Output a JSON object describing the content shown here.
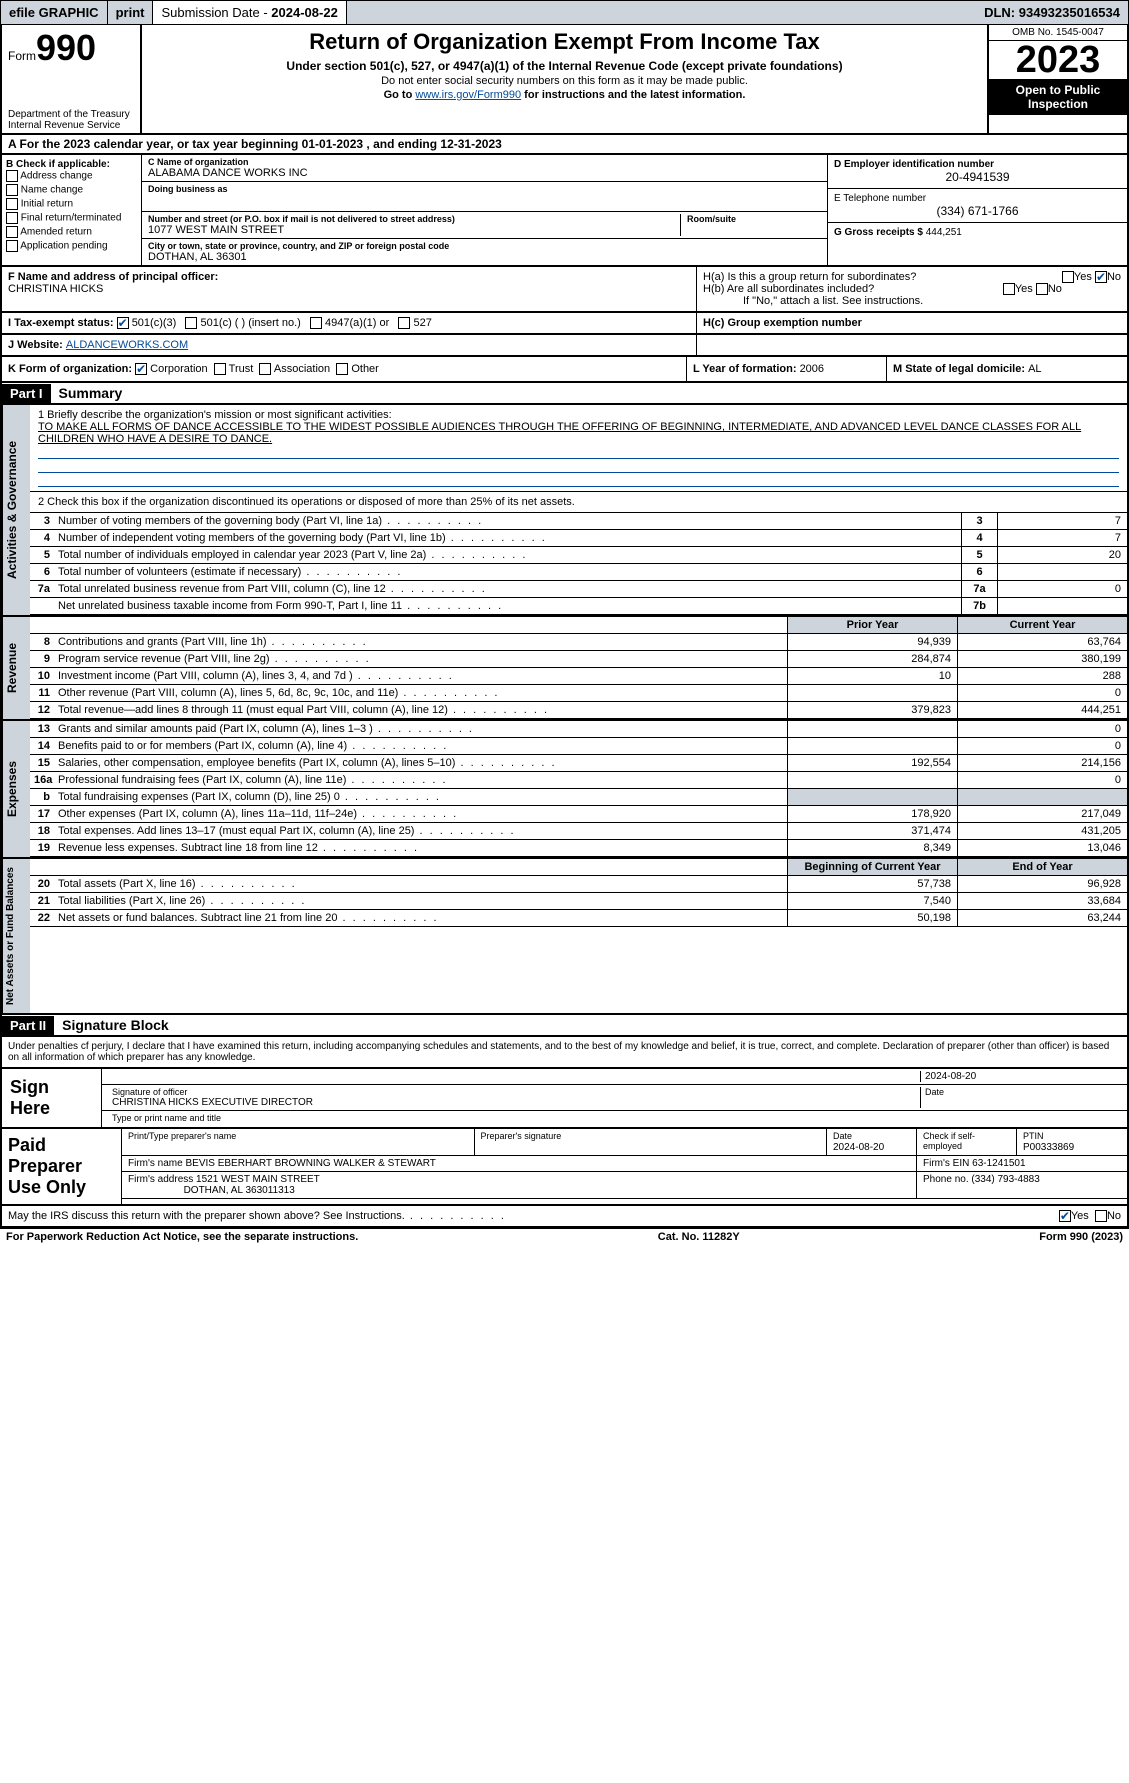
{
  "topbar": {
    "efile": "efile GRAPHIC",
    "print": "print",
    "submission_label": "Submission Date - ",
    "submission_date": "2024-08-22",
    "dln_label": "DLN: ",
    "dln": "93493235016534"
  },
  "header": {
    "form_prefix": "Form",
    "form_number": "990",
    "dept": "Department of the Treasury\nInternal Revenue Service",
    "title": "Return of Organization Exempt From Income Tax",
    "subtitle": "Under section 501(c), 527, or 4947(a)(1) of the Internal Revenue Code (except private foundations)",
    "note1": "Do not enter social security numbers on this form as it may be made public.",
    "note2_prefix": "Go to ",
    "note2_link": "www.irs.gov/Form990",
    "note2_suffix": " for instructions and the latest information.",
    "omb": "OMB No. 1545-0047",
    "year": "2023",
    "open": "Open to Public Inspection"
  },
  "row_a": {
    "text_prefix": "A For the 2023 calendar year, or tax year beginning ",
    "begin": "01-01-2023",
    "mid": " , and ending ",
    "end": "12-31-2023"
  },
  "box_b": {
    "label": "B Check if applicable:",
    "opts": [
      "Address change",
      "Name change",
      "Initial return",
      "Final return/terminated",
      "Amended return",
      "Application pending"
    ]
  },
  "box_c": {
    "name_label": "C Name of organization",
    "name": "ALABAMA DANCE WORKS INC",
    "dba_label": "Doing business as",
    "dba": "",
    "street_label": "Number and street (or P.O. box if mail is not delivered to street address)",
    "street": "1077 WEST MAIN STREET",
    "suite_label": "Room/suite",
    "suite": "",
    "city_label": "City or town, state or province, country, and ZIP or foreign postal code",
    "city": "DOTHAN, AL  36301"
  },
  "box_d": {
    "label": "D Employer identification number",
    "value": "20-4941539"
  },
  "box_e": {
    "label": "E Telephone number",
    "value": "(334) 671-1766"
  },
  "box_g": {
    "label": "G Gross receipts $ ",
    "value": "444,251"
  },
  "box_f": {
    "label": "F  Name and address of principal officer:",
    "name": "CHRISTINA HICKS"
  },
  "box_h": {
    "a": "H(a)  Is this a group return for subordinates?",
    "a_yes": "Yes",
    "a_no": "No",
    "a_checked": "No",
    "b": "H(b)  Are all subordinates included?",
    "b_yes": "Yes",
    "b_no": "No",
    "b_note": "If \"No,\" attach a list. See instructions.",
    "c": "H(c)  Group exemption number "
  },
  "box_i": {
    "label": "I    Tax-exempt status:",
    "opts": [
      "501(c)(3)",
      "501(c) (  ) (insert no.)",
      "4947(a)(1) or",
      "527"
    ],
    "checked": 0
  },
  "box_j": {
    "label": "J   Website: ",
    "value": "ALDANCEWORKS.COM"
  },
  "box_k": {
    "label": "K Form of organization:",
    "opts": [
      "Corporation",
      "Trust",
      "Association",
      "Other"
    ],
    "checked": 0
  },
  "box_l": {
    "label": "L Year of formation: ",
    "value": "2006"
  },
  "box_m": {
    "label": "M State of legal domicile: ",
    "value": "AL"
  },
  "parts": {
    "p1": "Part I",
    "p1_title": "Summary",
    "p2": "Part II",
    "p2_title": "Signature Block"
  },
  "mission": {
    "label": "1   Briefly describe the organization's mission or most significant activities:",
    "text": "TO MAKE ALL FORMS OF DANCE ACCESSIBLE TO THE WIDEST POSSIBLE AUDIENCES THROUGH THE OFFERING OF BEGINNING, INTERMEDIATE, AND ADVANCED LEVEL DANCE CLASSES FOR ALL CHILDREN WHO HAVE A DESIRE TO DANCE."
  },
  "line2": "2   Check this box      if the organization discontinued its operations or disposed of more than 25% of its net assets.",
  "gov_lines": [
    {
      "n": "3",
      "d": "Number of voting members of the governing body (Part VI, line 1a)",
      "k": "3",
      "v": "7"
    },
    {
      "n": "4",
      "d": "Number of independent voting members of the governing body (Part VI, line 1b)",
      "k": "4",
      "v": "7"
    },
    {
      "n": "5",
      "d": "Total number of individuals employed in calendar year 2023 (Part V, line 2a)",
      "k": "5",
      "v": "20"
    },
    {
      "n": "6",
      "d": "Total number of volunteers (estimate if necessary)",
      "k": "6",
      "v": ""
    },
    {
      "n": "7a",
      "d": "Total unrelated business revenue from Part VIII, column (C), line 12",
      "k": "7a",
      "v": "0"
    },
    {
      "n": " ",
      "d": "Net unrelated business taxable income from Form 990-T, Part I, line 11",
      "k": "7b",
      "v": ""
    }
  ],
  "colheaders": {
    "prior": "Prior Year",
    "current": "Current Year",
    "begin": "Beginning of Current Year",
    "end": "End of Year"
  },
  "revenue": [
    {
      "n": "8",
      "d": "Contributions and grants (Part VIII, line 1h)",
      "v1": "94,939",
      "v2": "63,764"
    },
    {
      "n": "9",
      "d": "Program service revenue (Part VIII, line 2g)",
      "v1": "284,874",
      "v2": "380,199"
    },
    {
      "n": "10",
      "d": "Investment income (Part VIII, column (A), lines 3, 4, and 7d )",
      "v1": "10",
      "v2": "288"
    },
    {
      "n": "11",
      "d": "Other revenue (Part VIII, column (A), lines 5, 6d, 8c, 9c, 10c, and 11e)",
      "v1": "",
      "v2": "0"
    },
    {
      "n": "12",
      "d": "Total revenue—add lines 8 through 11 (must equal Part VIII, column (A), line 12)",
      "v1": "379,823",
      "v2": "444,251"
    }
  ],
  "expenses": [
    {
      "n": "13",
      "d": "Grants and similar amounts paid (Part IX, column (A), lines 1–3 )",
      "v1": "",
      "v2": "0"
    },
    {
      "n": "14",
      "d": "Benefits paid to or for members (Part IX, column (A), line 4)",
      "v1": "",
      "v2": "0"
    },
    {
      "n": "15",
      "d": "Salaries, other compensation, employee benefits (Part IX, column (A), lines 5–10)",
      "v1": "192,554",
      "v2": "214,156"
    },
    {
      "n": "16a",
      "d": "Professional fundraising fees (Part IX, column (A), line 11e)",
      "v1": "",
      "v2": "0"
    },
    {
      "n": "b",
      "d": "Total fundraising expenses (Part IX, column (D), line 25) 0",
      "v1": "grey",
      "v2": "grey"
    },
    {
      "n": "17",
      "d": "Other expenses (Part IX, column (A), lines 11a–11d, 11f–24e)",
      "v1": "178,920",
      "v2": "217,049"
    },
    {
      "n": "18",
      "d": "Total expenses. Add lines 13–17 (must equal Part IX, column (A), line 25)",
      "v1": "371,474",
      "v2": "431,205"
    },
    {
      "n": "19",
      "d": "Revenue less expenses. Subtract line 18 from line 12",
      "v1": "8,349",
      "v2": "13,046"
    }
  ],
  "netassets": [
    {
      "n": "20",
      "d": "Total assets (Part X, line 16)",
      "v1": "57,738",
      "v2": "96,928"
    },
    {
      "n": "21",
      "d": "Total liabilities (Part X, line 26)",
      "v1": "7,540",
      "v2": "33,684"
    },
    {
      "n": "22",
      "d": "Net assets or fund balances. Subtract line 21 from line 20",
      "v1": "50,198",
      "v2": "63,244"
    }
  ],
  "side_labels": {
    "gov": "Activities & Governance",
    "rev": "Revenue",
    "exp": "Expenses",
    "net": "Net Assets or Fund Balances"
  },
  "sig_declare": "Under penalties cf perjury, I declare that I have examined this return, including accompanying schedules and statements, and to the best of my knowledge and belief, it is true, correct, and complete. Declaration of preparer (other than officer) is based on all information of which preparer has any knowledge.",
  "sign_here": {
    "label": "Sign Here",
    "sig_officer": "Signature of officer",
    "date_label": "Date",
    "date": "2024-08-20",
    "name_title": "CHRISTINA HICKS  EXECUTIVE DIRECTOR",
    "type_label": "Type or print name and title"
  },
  "paid": {
    "label": "Paid Preparer Use Only",
    "h1": "Print/Type preparer's name",
    "h2": "Preparer's signature",
    "h3": "Date",
    "date": "2024-08-20",
    "h4": "Check      if self-employed",
    "h5": "PTIN",
    "ptin": "P00333869",
    "firm_name_label": "Firm's name   ",
    "firm_name": "BEVIS EBERHART BROWNING WALKER & STEWART",
    "firm_ein_label": "Firm's EIN  ",
    "firm_ein": "63-1241501",
    "firm_addr_label": "Firm's address ",
    "firm_addr": "1521 WEST MAIN STREET",
    "firm_city": "DOTHAN, AL  363011313",
    "phone_label": "Phone no. ",
    "phone": "(334) 793-4883"
  },
  "discuss": {
    "text": "May the IRS discuss this return with the preparer shown above? See Instructions.",
    "yes": "Yes",
    "no": "No",
    "checked": "Yes"
  },
  "footer": {
    "left": "For Paperwork Reduction Act Notice, see the separate instructions.",
    "mid": "Cat. No. 11282Y",
    "right": "Form 990 (2023)"
  }
}
